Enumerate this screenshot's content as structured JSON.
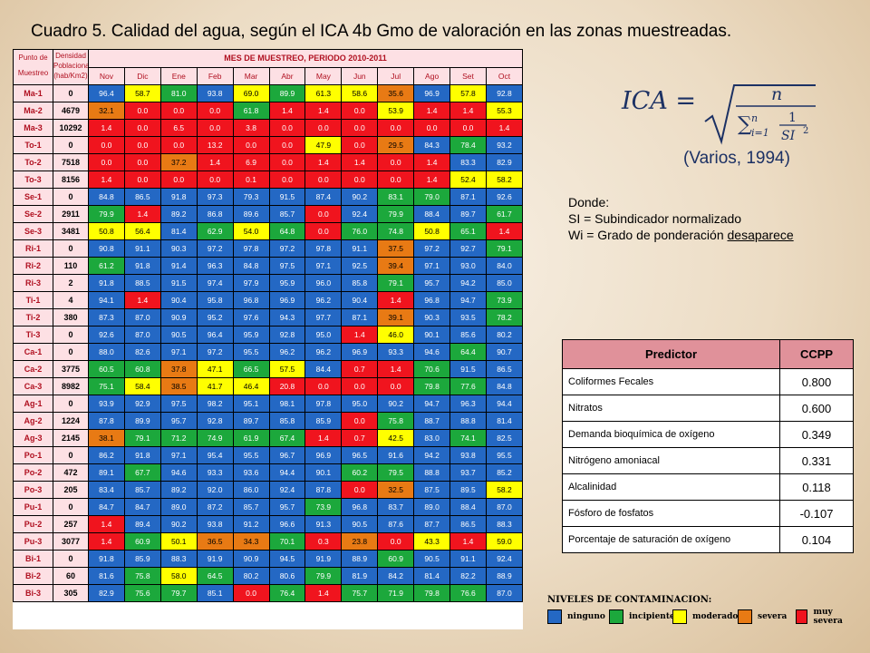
{
  "title": "Cuadro 5. Calidad del agua, según el ICA 4b Gmo de valoración en las zonas muestreadas.",
  "ica_table": {
    "col_site_header": [
      "Punto de",
      "Muestreo"
    ],
    "col_pop_header": [
      "Densidad",
      "Poblacional",
      "(hab/Km2)"
    ],
    "months_header": "MES DE MUESTREO, PERIODO 2010-2011",
    "months": [
      "Nov",
      "Dic",
      "Ene",
      "Feb",
      "Mar",
      "Abr",
      "May",
      "Jun",
      "Jul",
      "Ago",
      "Set",
      "Oct"
    ],
    "rows": [
      {
        "site": "Ma-1",
        "pop": "0",
        "vals": [
          "96.4",
          "58.7",
          "81.0",
          "93.8",
          "69.0",
          "89.9",
          "61.3",
          "58.6",
          "35.6",
          "96.9",
          "57.8",
          "92.8"
        ],
        "cls": [
          "b",
          "y",
          "g",
          "b",
          "y",
          "g",
          "y",
          "y",
          "o",
          "b",
          "y",
          "b"
        ]
      },
      {
        "site": "Ma-2",
        "pop": "4679",
        "vals": [
          "32.1",
          "0.0",
          "0.0",
          "0.0",
          "61.8",
          "1.4",
          "1.4",
          "0.0",
          "53.9",
          "1.4",
          "1.4",
          "55.3"
        ],
        "cls": [
          "o",
          "r",
          "r",
          "r",
          "g",
          "r",
          "r",
          "r",
          "y",
          "r",
          "r",
          "y"
        ]
      },
      {
        "site": "Ma-3",
        "pop": "10292",
        "vals": [
          "1.4",
          "0.0",
          "6.5",
          "0.0",
          "3.8",
          "0.0",
          "0.0",
          "0.0",
          "0.0",
          "0.0",
          "0.0",
          "1.4"
        ],
        "cls": [
          "r",
          "r",
          "r",
          "r",
          "r",
          "r",
          "r",
          "r",
          "r",
          "r",
          "r",
          "r"
        ]
      },
      {
        "site": "To-1",
        "pop": "0",
        "vals": [
          "0.0",
          "0.0",
          "0.0",
          "13.2",
          "0.0",
          "0.0",
          "47.9",
          "0.0",
          "29.5",
          "84.3",
          "78.4",
          "93.2"
        ],
        "cls": [
          "r",
          "r",
          "r",
          "r",
          "r",
          "r",
          "y",
          "r",
          "o",
          "b",
          "g",
          "b"
        ]
      },
      {
        "site": "To-2",
        "pop": "7518",
        "vals": [
          "0.0",
          "0.0",
          "37.2",
          "1.4",
          "6.9",
          "0.0",
          "1.4",
          "1.4",
          "0.0",
          "1.4",
          "83.3",
          "82.9"
        ],
        "cls": [
          "r",
          "r",
          "o",
          "r",
          "r",
          "r",
          "r",
          "r",
          "r",
          "r",
          "b",
          "b"
        ]
      },
      {
        "site": "To-3",
        "pop": "8156",
        "vals": [
          "1.4",
          "0.0",
          "0.0",
          "0.0",
          "0.1",
          "0.0",
          "0.0",
          "0.0",
          "0.0",
          "1.4",
          "52.4",
          "58.2"
        ],
        "cls": [
          "r",
          "r",
          "r",
          "r",
          "r",
          "r",
          "r",
          "r",
          "r",
          "r",
          "y",
          "y"
        ]
      },
      {
        "site": "Se-1",
        "pop": "0",
        "vals": [
          "84.8",
          "86.5",
          "91.8",
          "97.3",
          "79.3",
          "91.5",
          "87.4",
          "90.2",
          "83.1",
          "79.0",
          "87.1",
          "92.6"
        ],
        "cls": [
          "b",
          "b",
          "b",
          "b",
          "b",
          "b",
          "b",
          "b",
          "g",
          "g",
          "b",
          "b"
        ]
      },
      {
        "site": "Se-2",
        "pop": "2911",
        "vals": [
          "79.9",
          "1.4",
          "89.2",
          "86.8",
          "89.6",
          "85.7",
          "0.0",
          "92.4",
          "79.9",
          "88.4",
          "89.7",
          "61.7"
        ],
        "cls": [
          "g",
          "r",
          "b",
          "b",
          "b",
          "b",
          "r",
          "b",
          "g",
          "b",
          "b",
          "g"
        ]
      },
      {
        "site": "Se-3",
        "pop": "3481",
        "vals": [
          "50.8",
          "56.4",
          "81.4",
          "62.9",
          "54.0",
          "64.8",
          "0.0",
          "76.0",
          "74.8",
          "50.8",
          "65.1",
          "1.4"
        ],
        "cls": [
          "y",
          "y",
          "b",
          "g",
          "y",
          "g",
          "r",
          "g",
          "g",
          "y",
          "g",
          "r"
        ]
      },
      {
        "site": "Ri-1",
        "pop": "0",
        "vals": [
          "90.8",
          "91.1",
          "90.3",
          "97.2",
          "97.8",
          "97.2",
          "97.8",
          "91.1",
          "37.5",
          "97.2",
          "92.7",
          "79.1"
        ],
        "cls": [
          "b",
          "b",
          "b",
          "b",
          "b",
          "b",
          "b",
          "b",
          "o",
          "b",
          "b",
          "g"
        ]
      },
      {
        "site": "Ri-2",
        "pop": "110",
        "vals": [
          "61.2",
          "91.8",
          "91.4",
          "96.3",
          "84.8",
          "97.5",
          "97.1",
          "92.5",
          "39.4",
          "97.1",
          "93.0",
          "84.0"
        ],
        "cls": [
          "g",
          "b",
          "b",
          "b",
          "b",
          "b",
          "b",
          "b",
          "o",
          "b",
          "b",
          "b"
        ]
      },
      {
        "site": "Ri-3",
        "pop": "2",
        "vals": [
          "91.8",
          "88.5",
          "91.5",
          "97.4",
          "97.9",
          "95.9",
          "96.0",
          "85.8",
          "79.1",
          "95.7",
          "94.2",
          "85.0"
        ],
        "cls": [
          "b",
          "b",
          "b",
          "b",
          "b",
          "b",
          "b",
          "b",
          "g",
          "b",
          "b",
          "b"
        ]
      },
      {
        "site": "Ti-1",
        "pop": "4",
        "vals": [
          "94.1",
          "1.4",
          "90.4",
          "95.8",
          "96.8",
          "96.9",
          "96.2",
          "90.4",
          "1.4",
          "96.8",
          "94.7",
          "73.9"
        ],
        "cls": [
          "b",
          "r",
          "b",
          "b",
          "b",
          "b",
          "b",
          "b",
          "r",
          "b",
          "b",
          "g"
        ]
      },
      {
        "site": "Ti-2",
        "pop": "380",
        "vals": [
          "87.3",
          "87.0",
          "90.9",
          "95.2",
          "97.6",
          "94.3",
          "97.7",
          "87.1",
          "39.1",
          "90.3",
          "93.5",
          "78.2"
        ],
        "cls": [
          "b",
          "b",
          "b",
          "b",
          "b",
          "b",
          "b",
          "b",
          "o",
          "b",
          "b",
          "g"
        ]
      },
      {
        "site": "Ti-3",
        "pop": "0",
        "vals": [
          "92.6",
          "87.0",
          "90.5",
          "96.4",
          "95.9",
          "92.8",
          "95.0",
          "1.4",
          "46.0",
          "90.1",
          "85.6",
          "80.2"
        ],
        "cls": [
          "b",
          "b",
          "b",
          "b",
          "b",
          "b",
          "b",
          "r",
          "y",
          "b",
          "b",
          "b"
        ]
      },
      {
        "site": "Ca-1",
        "pop": "0",
        "vals": [
          "88.0",
          "82.6",
          "97.1",
          "97.2",
          "95.5",
          "96.2",
          "96.2",
          "96.9",
          "93.3",
          "94.6",
          "64.4",
          "90.7"
        ],
        "cls": [
          "b",
          "b",
          "b",
          "b",
          "b",
          "b",
          "b",
          "b",
          "b",
          "b",
          "g",
          "b"
        ]
      },
      {
        "site": "Ca-2",
        "pop": "3775",
        "vals": [
          "60.5",
          "60.8",
          "37.8",
          "47.1",
          "66.5",
          "57.5",
          "84.4",
          "0.7",
          "1.4",
          "70.6",
          "91.5",
          "86.5"
        ],
        "cls": [
          "g",
          "g",
          "o",
          "y",
          "g",
          "y",
          "b",
          "r",
          "r",
          "g",
          "b",
          "b"
        ]
      },
      {
        "site": "Ca-3",
        "pop": "8982",
        "vals": [
          "75.1",
          "58.4",
          "38.5",
          "41.7",
          "46.4",
          "20.8",
          "0.0",
          "0.0",
          "0.0",
          "79.8",
          "77.6",
          "84.8"
        ],
        "cls": [
          "g",
          "y",
          "o",
          "y",
          "y",
          "r",
          "r",
          "r",
          "r",
          "g",
          "g",
          "b"
        ]
      },
      {
        "site": "Ag-1",
        "pop": "0",
        "vals": [
          "93.9",
          "92.9",
          "97.5",
          "98.2",
          "95.1",
          "98.1",
          "97.8",
          "95.0",
          "90.2",
          "94.7",
          "96.3",
          "94.4"
        ],
        "cls": [
          "b",
          "b",
          "b",
          "b",
          "b",
          "b",
          "b",
          "b",
          "b",
          "b",
          "b",
          "b"
        ]
      },
      {
        "site": "Ag-2",
        "pop": "1224",
        "vals": [
          "87.8",
          "89.9",
          "95.7",
          "92.8",
          "89.7",
          "85.8",
          "85.9",
          "0.0",
          "75.8",
          "88.7",
          "88.8",
          "81.4"
        ],
        "cls": [
          "b",
          "b",
          "b",
          "b",
          "b",
          "b",
          "b",
          "r",
          "g",
          "b",
          "b",
          "b"
        ]
      },
      {
        "site": "Ag-3",
        "pop": "2145",
        "vals": [
          "38.1",
          "79.1",
          "71.2",
          "74.9",
          "61.9",
          "67.4",
          "1.4",
          "0.7",
          "42.5",
          "83.0",
          "74.1",
          "82.5"
        ],
        "cls": [
          "o",
          "g",
          "g",
          "g",
          "g",
          "g",
          "r",
          "r",
          "y",
          "b",
          "g",
          "b"
        ]
      },
      {
        "site": "Po-1",
        "pop": "0",
        "vals": [
          "86.2",
          "91.8",
          "97.1",
          "95.4",
          "95.5",
          "96.7",
          "96.9",
          "96.5",
          "91.6",
          "94.2",
          "93.8",
          "95.5"
        ],
        "cls": [
          "b",
          "b",
          "b",
          "b",
          "b",
          "b",
          "b",
          "b",
          "b",
          "b",
          "b",
          "b"
        ]
      },
      {
        "site": "Po-2",
        "pop": "472",
        "vals": [
          "89.1",
          "67.7",
          "94.6",
          "93.3",
          "93.6",
          "94.4",
          "90.1",
          "60.2",
          "79.5",
          "88.8",
          "93.7",
          "85.2"
        ],
        "cls": [
          "b",
          "g",
          "b",
          "b",
          "b",
          "b",
          "b",
          "g",
          "g",
          "b",
          "b",
          "b"
        ]
      },
      {
        "site": "Po-3",
        "pop": "205",
        "vals": [
          "83.4",
          "85.7",
          "89.2",
          "92.0",
          "86.0",
          "92.4",
          "87.8",
          "0.0",
          "32.5",
          "87.5",
          "89.5",
          "58.2"
        ],
        "cls": [
          "b",
          "b",
          "b",
          "b",
          "b",
          "b",
          "b",
          "r",
          "o",
          "b",
          "b",
          "y"
        ]
      },
      {
        "site": "Pu-1",
        "pop": "0",
        "vals": [
          "84.7",
          "84.7",
          "89.0",
          "87.2",
          "85.7",
          "95.7",
          "73.9",
          "96.8",
          "83.7",
          "89.0",
          "88.4",
          "87.0"
        ],
        "cls": [
          "b",
          "b",
          "b",
          "b",
          "b",
          "b",
          "g",
          "b",
          "b",
          "b",
          "b",
          "b"
        ]
      },
      {
        "site": "Pu-2",
        "pop": "257",
        "vals": [
          "1.4",
          "89.4",
          "90.2",
          "93.8",
          "91.2",
          "96.6",
          "91.3",
          "90.5",
          "87.6",
          "87.7",
          "86.5",
          "88.3"
        ],
        "cls": [
          "r",
          "b",
          "b",
          "b",
          "b",
          "b",
          "b",
          "b",
          "b",
          "b",
          "b",
          "b"
        ]
      },
      {
        "site": "Pu-3",
        "pop": "3077",
        "vals": [
          "1.4",
          "60.9",
          "50.1",
          "36.5",
          "34.3",
          "70.1",
          "0.3",
          "23.8",
          "0.0",
          "43.3",
          "1.4",
          "59.0"
        ],
        "cls": [
          "r",
          "g",
          "y",
          "o",
          "o",
          "g",
          "r",
          "o",
          "r",
          "y",
          "r",
          "y"
        ]
      },
      {
        "site": "Bi-1",
        "pop": "0",
        "vals": [
          "91.8",
          "85.9",
          "88.3",
          "91.9",
          "90.9",
          "94.5",
          "91.9",
          "88.9",
          "60.9",
          "90.5",
          "91.1",
          "92.4"
        ],
        "cls": [
          "b",
          "b",
          "b",
          "b",
          "b",
          "b",
          "b",
          "b",
          "g",
          "b",
          "b",
          "b"
        ]
      },
      {
        "site": "Bi-2",
        "pop": "60",
        "vals": [
          "81.6",
          "75.8",
          "58.0",
          "64.5",
          "80.2",
          "80.6",
          "79.9",
          "81.9",
          "84.2",
          "81.4",
          "82.2",
          "88.9"
        ],
        "cls": [
          "b",
          "g",
          "y",
          "g",
          "b",
          "b",
          "g",
          "b",
          "b",
          "b",
          "b",
          "b"
        ]
      },
      {
        "site": "Bi-3",
        "pop": "305",
        "vals": [
          "82.9",
          "75.6",
          "79.7",
          "85.1",
          "0.0",
          "76.4",
          "1.4",
          "75.7",
          "71.9",
          "79.8",
          "76.6",
          "87.0"
        ],
        "cls": [
          "b",
          "g",
          "g",
          "b",
          "r",
          "g",
          "r",
          "g",
          "g",
          "g",
          "g",
          "b"
        ]
      }
    ]
  },
  "formula": {
    "lhs": "ICA =",
    "numerator": "n",
    "sum_upper": "n",
    "sum_lower": "i=1",
    "frac_num": "1",
    "frac_den": "SI",
    "exponent": "2",
    "source": "(Varios, 1994)"
  },
  "notes": {
    "donde": "Donde:",
    "si_def": "SI = Subindicador normalizado",
    "wi_def_prefix": "Wi = Grado de ponderación ",
    "wi_def_underlined": "desaparece"
  },
  "predictor_table": {
    "headers": [
      "Predictor",
      "CCPP"
    ],
    "rows": [
      [
        "Coliformes Fecales",
        "0.800"
      ],
      [
        "Nitratos",
        "0.600"
      ],
      [
        "Demanda bioquímica de oxígeno",
        "0.349"
      ],
      [
        "Nitrógeno amoniacal",
        "0.331"
      ],
      [
        "Alcalinidad",
        "0.118"
      ],
      [
        "Fósforo de fosfatos",
        "-0.107"
      ],
      [
        "Porcentaje de saturación de oxígeno",
        "0.104"
      ]
    ]
  },
  "legend": {
    "title": "NIVELES DE CONTAMINACION:",
    "items": [
      {
        "label": "ninguno",
        "color": "#2468c4"
      },
      {
        "label": "incipiente",
        "color": "#1ca83c"
      },
      {
        "label": "moderado",
        "color": "#ffff00"
      },
      {
        "label": "severa",
        "color": "#e87a14"
      },
      {
        "label": "muy severa",
        "color": "#f0141e"
      }
    ]
  }
}
